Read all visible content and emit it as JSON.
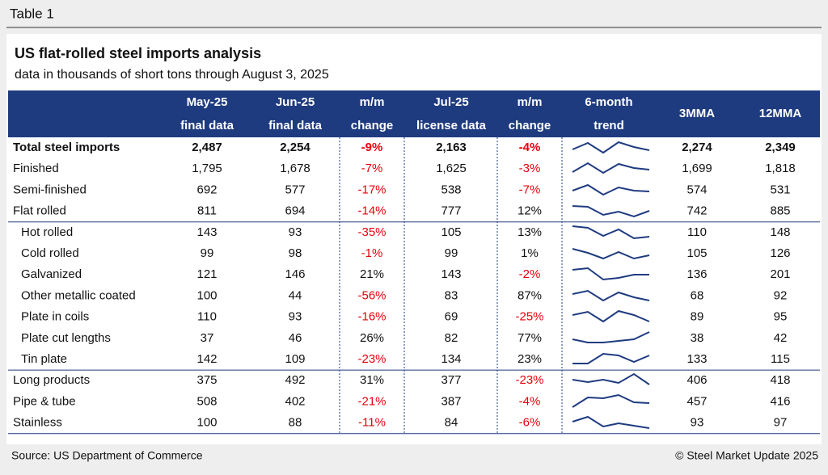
{
  "header": {
    "label": "Table 1",
    "title": "US flat-rolled steel imports analysis",
    "subtitle": "data in thousands of short tons through August 3, 2025"
  },
  "table": {
    "columns": [
      [
        "May-25",
        "final data"
      ],
      [
        "Jun-25",
        "final data"
      ],
      [
        "m/m",
        "change"
      ],
      [
        "Jul-25",
        "license data"
      ],
      [
        "m/m",
        "change"
      ],
      [
        "6-month",
        "trend"
      ],
      [
        "3MMA"
      ],
      [
        "12MMA"
      ]
    ],
    "rows": [
      [
        "Total steel imports",
        "2,487",
        "2,254",
        "-9%",
        "2,163",
        "-4%",
        "2,274",
        "2,349"
      ],
      [
        "Finished",
        "1,795",
        "1,678",
        "-7%",
        "1,625",
        "-3%",
        "1,699",
        "1,818"
      ],
      [
        "Semi-finished",
        "692",
        "577",
        "-17%",
        "538",
        "-7%",
        "574",
        "531"
      ],
      [
        "Flat rolled",
        "811",
        "694",
        "-14%",
        "777",
        "12%",
        "742",
        "885"
      ],
      [
        "Hot rolled",
        "143",
        "93",
        "-35%",
        "105",
        "13%",
        "110",
        "148"
      ],
      [
        "Cold rolled",
        "99",
        "98",
        "-1%",
        "99",
        "1%",
        "105",
        "126"
      ],
      [
        "Galvanized",
        "121",
        "146",
        "21%",
        "143",
        "-2%",
        "136",
        "201"
      ],
      [
        "Other metallic coated",
        "100",
        "44",
        "-56%",
        "83",
        "87%",
        "68",
        "92"
      ],
      [
        "Plate in coils",
        "110",
        "93",
        "-16%",
        "69",
        "-25%",
        "89",
        "95"
      ],
      [
        "Plate cut lengths",
        "37",
        "46",
        "26%",
        "82",
        "77%",
        "38",
        "42"
      ],
      [
        "Tin plate",
        "142",
        "109",
        "-23%",
        "134",
        "23%",
        "133",
        "115"
      ],
      [
        "Long products",
        "375",
        "492",
        "31%",
        "377",
        "-23%",
        "406",
        "418"
      ],
      [
        "Pipe & tube",
        "508",
        "402",
        "-21%",
        "387",
        "-4%",
        "457",
        "416"
      ],
      [
        "Stainless",
        "100",
        "88",
        "-11%",
        "84",
        "-6%",
        "93",
        "97"
      ]
    ]
  },
  "footer": {
    "source": "Source: US Department of Commerce",
    "copyright": "© Steel Market Update 2025"
  }
}
